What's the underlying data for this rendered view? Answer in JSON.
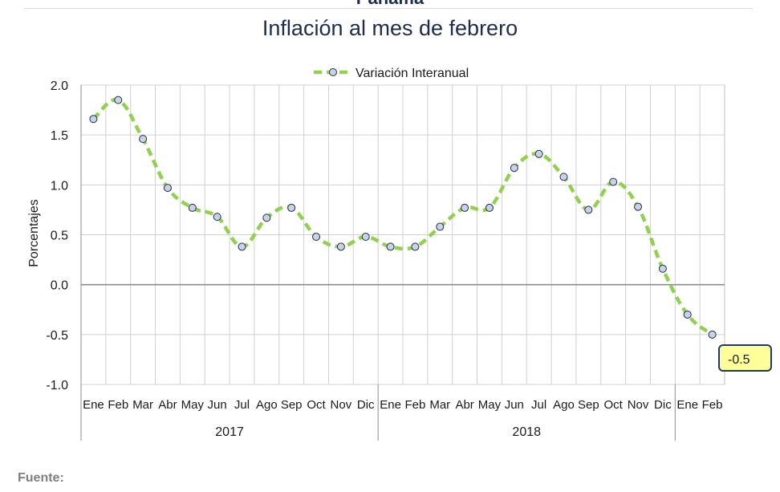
{
  "header": {
    "top_title": "Panamá",
    "title": "Inflación al mes de febrero"
  },
  "source": "Fuente:",
  "chart_data": {
    "type": "line",
    "title": "Inflación al mes de febrero",
    "ylabel": "Porcentajes",
    "xlabel": "",
    "ylim": [
      -1.0,
      2.0
    ],
    "yticks": [
      2.0,
      1.5,
      1.0,
      0.5,
      0.0,
      -0.5,
      -1.0
    ],
    "grid": true,
    "legend": "top-center",
    "categories": [
      "Ene",
      "Feb",
      "Mar",
      "Abr",
      "May",
      "Jun",
      "Jul",
      "Ago",
      "Sep",
      "Oct",
      "Nov",
      "Dic",
      "Ene",
      "Feb",
      "Mar",
      "Abr",
      "May",
      "Jun",
      "Jul",
      "Ago",
      "Sep",
      "Oct",
      "Nov",
      "Dic",
      "Ene",
      "Feb"
    ],
    "groups": [
      {
        "label": "2017",
        "count": 12
      },
      {
        "label": "2018",
        "count": 12
      },
      {
        "label": "",
        "count": 2
      }
    ],
    "series": [
      {
        "name": "Variación Interanual",
        "color": "#92d050",
        "marker_color": "#c9d3e3",
        "values": [
          1.66,
          1.85,
          1.46,
          0.97,
          0.77,
          0.68,
          0.38,
          0.67,
          0.77,
          0.48,
          0.38,
          0.48,
          0.38,
          0.38,
          0.58,
          0.77,
          0.77,
          1.17,
          1.31,
          1.08,
          0.75,
          1.03,
          0.78,
          0.16,
          -0.3,
          -0.5
        ]
      }
    ],
    "annotation": {
      "text": "-0.5",
      "point_index": 25,
      "background": "#ffff99",
      "border": "#1f3864"
    }
  }
}
